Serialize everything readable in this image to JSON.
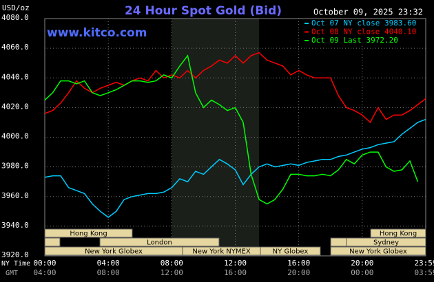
{
  "chart_data": {
    "type": "line",
    "title": "24 Hour Spot Gold (Bid)",
    "y_label": "USD/oz",
    "timestamp": "October 09, 2025 23:32",
    "source": "www.kitco.com",
    "x_row_labels": [
      "NY Time",
      "GMT"
    ],
    "x": [
      0,
      0.5,
      1,
      1.5,
      2,
      2.5,
      3,
      3.5,
      4,
      4.5,
      5,
      5.5,
      6,
      6.5,
      7,
      7.5,
      8,
      8.5,
      9,
      9.5,
      10,
      10.5,
      11,
      11.5,
      12,
      12.5,
      13,
      13.5,
      14,
      14.5,
      15,
      15.5,
      16,
      16.5,
      17,
      17.5,
      18,
      18.5,
      19,
      19.5,
      20,
      20.5,
      21,
      21.5,
      22,
      22.5,
      23,
      23.5,
      24
    ],
    "xlim": [
      0,
      24
    ],
    "xticks": [
      {
        "value": 0,
        "label": "00:00"
      },
      {
        "value": 4,
        "label": "04:00"
      },
      {
        "value": 8,
        "label": "08:00"
      },
      {
        "value": 12,
        "label": "12:00"
      },
      {
        "value": 16,
        "label": "16:00"
      },
      {
        "value": 20,
        "label": "20:00"
      },
      {
        "value": 24,
        "label": "23:59"
      }
    ],
    "gmt_tick_labels": [
      "04:00",
      "08:00",
      "12:00",
      "16:00",
      "20:00",
      "00:00",
      "03:59"
    ],
    "ylim": [
      3920,
      4080
    ],
    "yticks": [
      {
        "value": 3920,
        "label": "3920.0"
      },
      {
        "value": 3940,
        "label": "3940.0"
      },
      {
        "value": 3960,
        "label": "3960.0"
      },
      {
        "value": 3980,
        "label": "3980.0"
      },
      {
        "value": 4000,
        "label": "4000.0"
      },
      {
        "value": 4020,
        "label": "4020.0"
      },
      {
        "value": 4040,
        "label": "4040.0"
      },
      {
        "value": 4060,
        "label": "4060.0"
      },
      {
        "value": 4080,
        "label": "4080.0"
      }
    ],
    "grid": true,
    "highlight_xlim": [
      8,
      13.5
    ],
    "sessions": [
      "Hong Kong",
      "London",
      "New York Globex",
      "New York NYMEX",
      "NY Globex",
      "Hong Kong",
      "Sydney",
      "New York Globex"
    ],
    "series": [
      {
        "name": "Oct 07 NY close 3983.60",
        "color": "#00ccff",
        "values": [
          3973,
          3974,
          3974,
          3966,
          3964,
          3962,
          3955,
          3950,
          3946,
          3950,
          3958,
          3960,
          3961,
          3962,
          3962,
          3963,
          3966,
          3972,
          3970,
          3977,
          3975,
          3980,
          3985,
          3982,
          3978,
          3968,
          3975,
          3980,
          3982,
          3980,
          3981,
          3982,
          3981,
          3983,
          3984,
          3985,
          3985,
          3987,
          3988,
          3990,
          3992,
          3993,
          3995,
          3996,
          3997,
          4002,
          4006,
          4010,
          4012
        ]
      },
      {
        "name": "Oct 08 NY close 4040.10",
        "color": "#ff0000",
        "values": [
          4016,
          4018,
          4023,
          4030,
          4038,
          4033,
          4030,
          4033,
          4035,
          4037,
          4035,
          4038,
          4040,
          4038,
          4045,
          4040,
          4042,
          4040,
          4045,
          4040,
          4045,
          4048,
          4052,
          4050,
          4055,
          4050,
          4055,
          4057,
          4052,
          4050,
          4048,
          4042,
          4045,
          4042,
          4040,
          4040,
          4040,
          4028,
          4020,
          4018,
          4015,
          4010,
          4020,
          4012,
          4015,
          4015,
          4018,
          4022,
          4026
        ]
      },
      {
        "name": "Oct 09 Last 3972.20",
        "color": "#00ff00",
        "values": [
          4025,
          4030,
          4038,
          4038,
          4036,
          4038,
          4030,
          4028,
          4030,
          4032,
          4035,
          4038,
          4038,
          4037,
          4038,
          4042,
          4040,
          4048,
          4055,
          4030,
          4020,
          4025,
          4022,
          4018,
          4020,
          4010,
          3975,
          3958,
          3955,
          3958,
          3965,
          3975,
          3975,
          3974,
          3974,
          3975,
          3974,
          3978,
          3985,
          3982,
          3988,
          3990,
          3990,
          3980,
          3977,
          3978,
          3984,
          3970,
          null
        ]
      }
    ]
  }
}
